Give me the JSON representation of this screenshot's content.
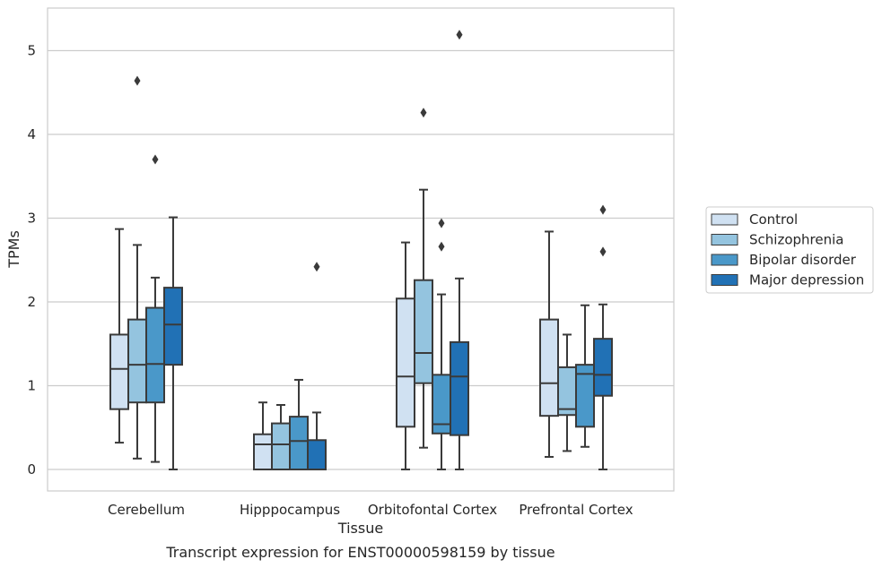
{
  "chart_data": {
    "type": "box",
    "caption": "Transcript expression for ENST00000598159 by tissue",
    "xlabel": "Tissue",
    "ylabel": "TPMs",
    "ylim": [
      -0.25,
      5.45
    ],
    "yticks": [
      0,
      1,
      2,
      3,
      4,
      5
    ],
    "grid": "horizontal",
    "legend_position": "right",
    "categories": [
      "Cerebellum",
      "Hipppocampus",
      "Orbitofontal Cortex",
      "Prefrontal Cortex"
    ],
    "series": [
      {
        "name": "Control",
        "color": "#d0e1f2",
        "boxes": [
          {
            "whislo": 0.32,
            "q1": 0.72,
            "median": 1.2,
            "q3": 1.61,
            "whishi": 2.87,
            "fliers": []
          },
          {
            "whislo": 0.0,
            "q1": 0.0,
            "median": 0.3,
            "q3": 0.42,
            "whishi": 0.8,
            "fliers": []
          },
          {
            "whislo": 0.0,
            "q1": 0.51,
            "median": 1.11,
            "q3": 2.04,
            "whishi": 2.71,
            "fliers": []
          },
          {
            "whislo": 0.15,
            "q1": 0.64,
            "median": 1.03,
            "q3": 1.79,
            "whishi": 2.84,
            "fliers": []
          }
        ]
      },
      {
        "name": "Schizophrenia",
        "color": "#94c4df",
        "boxes": [
          {
            "whislo": 0.13,
            "q1": 0.8,
            "median": 1.25,
            "q3": 1.79,
            "whishi": 2.68,
            "fliers": [
              4.64
            ]
          },
          {
            "whislo": 0.0,
            "q1": 0.0,
            "median": 0.3,
            "q3": 0.55,
            "whishi": 0.77,
            "fliers": []
          },
          {
            "whislo": 0.26,
            "q1": 1.03,
            "median": 1.39,
            "q3": 2.26,
            "whishi": 3.34,
            "fliers": [
              4.26
            ]
          },
          {
            "whislo": 0.22,
            "q1": 0.65,
            "median": 0.72,
            "q3": 1.22,
            "whishi": 1.61,
            "fliers": []
          }
        ]
      },
      {
        "name": "Bipolar disorder",
        "color": "#4a98c9",
        "boxes": [
          {
            "whislo": 0.09,
            "q1": 0.8,
            "median": 1.26,
            "q3": 1.93,
            "whishi": 2.29,
            "fliers": [
              3.7
            ]
          },
          {
            "whislo": 0.0,
            "q1": 0.0,
            "median": 0.34,
            "q3": 0.63,
            "whishi": 1.07,
            "fliers": []
          },
          {
            "whislo": 0.0,
            "q1": 0.43,
            "median": 0.54,
            "q3": 1.13,
            "whishi": 2.09,
            "fliers": [
              2.66,
              2.94
            ]
          },
          {
            "whislo": 0.27,
            "q1": 0.51,
            "median": 1.14,
            "q3": 1.25,
            "whishi": 1.96,
            "fliers": []
          }
        ]
      },
      {
        "name": "Major depression",
        "color": "#2171b5",
        "boxes": [
          {
            "whislo": 0.0,
            "q1": 1.25,
            "median": 1.73,
            "q3": 2.17,
            "whishi": 3.01,
            "fliers": []
          },
          {
            "whislo": 0.0,
            "q1": 0.0,
            "median": 0.0,
            "q3": 0.35,
            "whishi": 0.68,
            "fliers": [
              2.42
            ]
          },
          {
            "whislo": 0.0,
            "q1": 0.41,
            "median": 1.11,
            "q3": 1.52,
            "whishi": 2.28,
            "fliers": [
              5.19
            ]
          },
          {
            "whislo": 0.0,
            "q1": 0.88,
            "median": 1.13,
            "q3": 1.56,
            "whishi": 1.97,
            "fliers": [
              2.6,
              3.1
            ]
          }
        ]
      }
    ]
  }
}
